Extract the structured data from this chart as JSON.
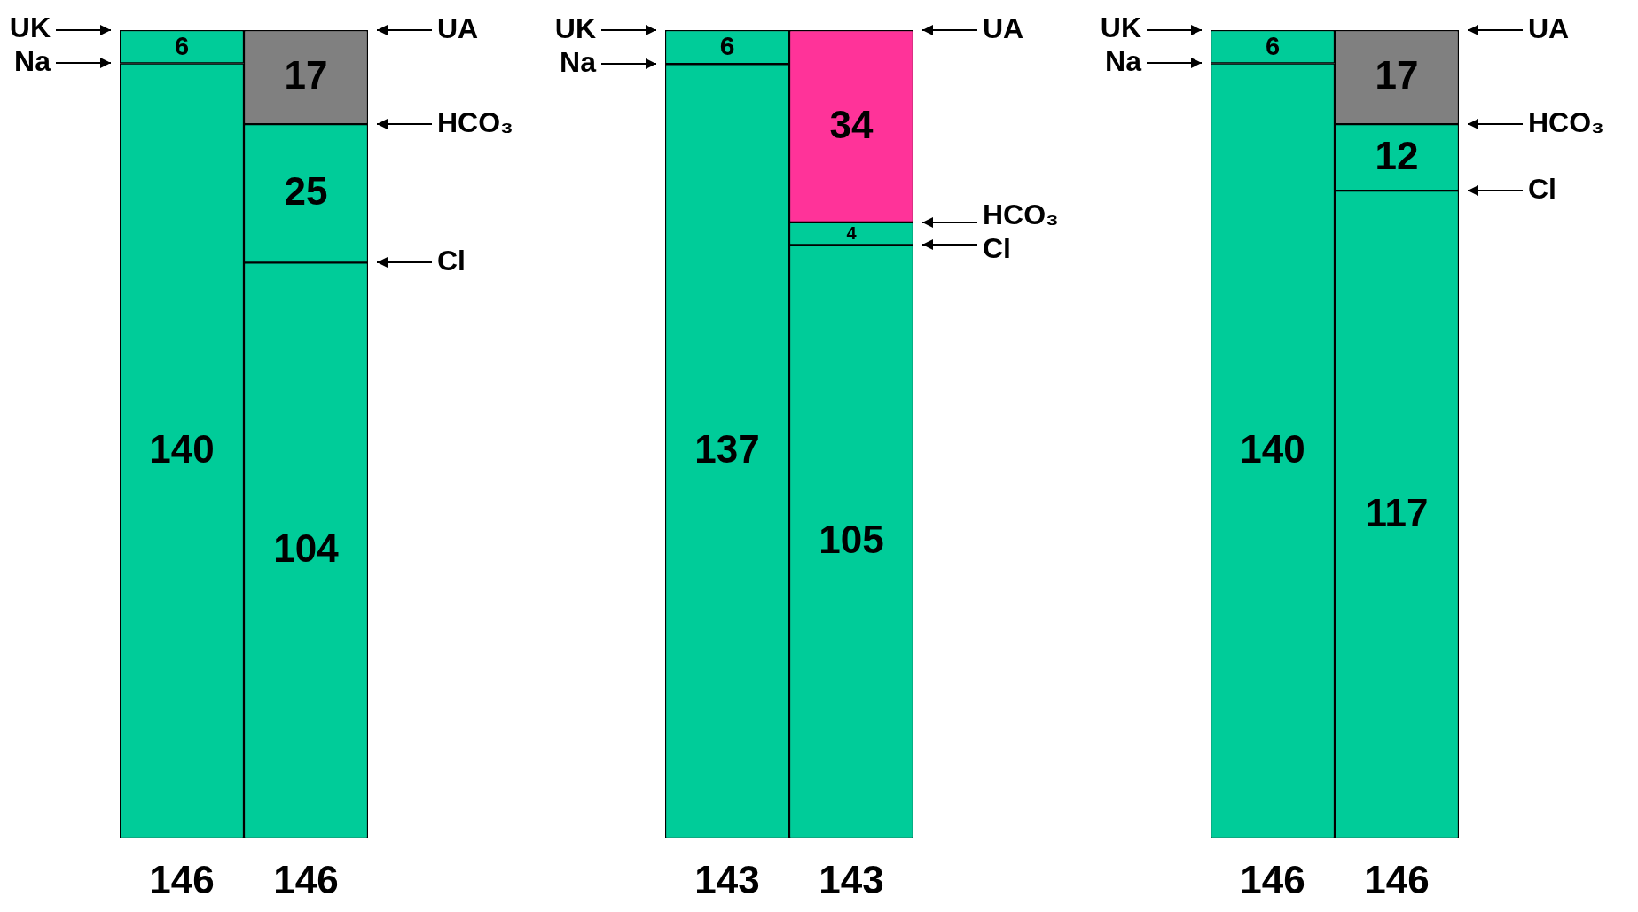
{
  "chart_data": [
    {
      "type": "bar",
      "stacked": true,
      "categories": [
        null,
        null
      ],
      "data_labels": true,
      "totals": [
        "146",
        "146"
      ],
      "series": [
        {
          "color": "#00cc99",
          "values": [
            140,
            104
          ]
        },
        {
          "color": "#00cc99",
          "values": [
            6,
            25
          ]
        },
        {
          "color": "#808080",
          "values": [
            null,
            17
          ]
        }
      ],
      "annotations": [
        "UK",
        "Na",
        "UA",
        "HCO₃",
        "Cl"
      ]
    },
    {
      "type": "bar",
      "stacked": true,
      "categories": [
        null,
        null
      ],
      "data_labels": true,
      "totals": [
        "143",
        "143"
      ],
      "series": [
        {
          "color": "#00cc99",
          "values": [
            137,
            105
          ]
        },
        {
          "color": "#00cc99",
          "values": [
            6,
            4
          ]
        },
        {
          "color": "#ff3399",
          "values": [
            null,
            34
          ]
        }
      ],
      "annotations": [
        "UK",
        "Na",
        "UA",
        "HCO₃",
        "Cl"
      ]
    },
    {
      "type": "bar",
      "stacked": true,
      "categories": [
        null,
        null
      ],
      "data_labels": true,
      "totals": [
        "146",
        "146"
      ],
      "series": [
        {
          "color": "#00cc99",
          "values": [
            140,
            117
          ]
        },
        {
          "color": "#00cc99",
          "values": [
            6,
            12
          ]
        },
        {
          "color": "#808080",
          "values": [
            null,
            17
          ]
        }
      ],
      "annotations": [
        "UK",
        "Na",
        "UA",
        "HCO₃",
        "Cl"
      ]
    }
  ]
}
